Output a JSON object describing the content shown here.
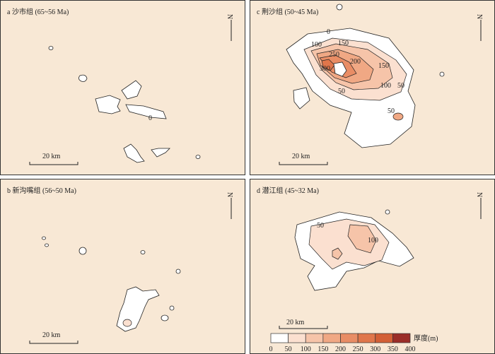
{
  "panels": [
    {
      "title": "a 沙市组 (65~56 Ma)",
      "north": "N",
      "scale": "20 km",
      "contour_labels": [
        "0"
      ]
    },
    {
      "title": "c 荆沙组 (50~45 Ma)",
      "north": "N",
      "scale": "20 km",
      "contour_labels": [
        "0",
        "100",
        "150",
        "200",
        "250",
        "300",
        "150",
        "100",
        "50",
        "50",
        "50"
      ]
    },
    {
      "title": "b 新沟嘴组 (56~50 Ma)",
      "north": "N",
      "scale": "20 km"
    },
    {
      "title": "d 潜江组 (45~32 Ma)",
      "north": "N",
      "scale": "20 km",
      "contour_labels": [
        "50",
        "100"
      ]
    }
  ],
  "legend": {
    "title": "厚度(m)",
    "ticks": [
      0,
      50,
      100,
      150,
      200,
      250,
      300,
      350,
      400
    ],
    "colors": [
      "#ffffff",
      "#fbe0d0",
      "#f6c4a9",
      "#f0a884",
      "#e98d65",
      "#e0764b",
      "#d35f36",
      "#9b2d28"
    ]
  }
}
